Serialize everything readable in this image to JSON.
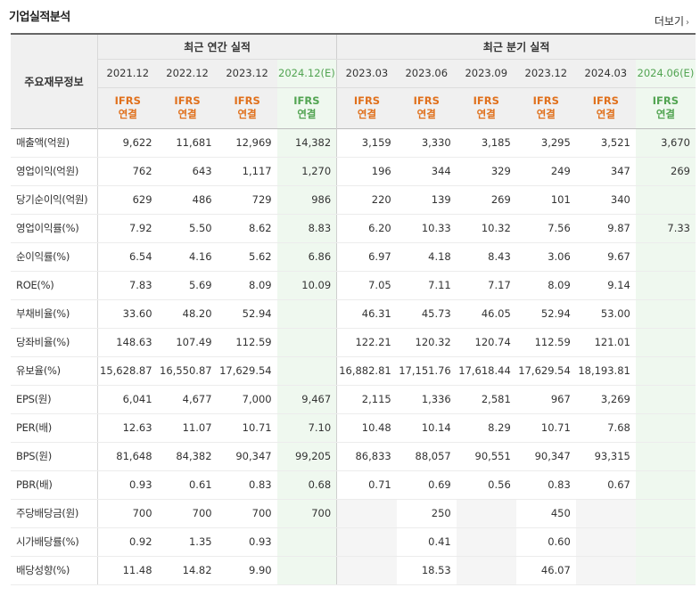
{
  "title": "기업실적분석",
  "more_label": "더보기",
  "header": {
    "main_label": "주요재무정보",
    "annual_group": "최근 연간 실적",
    "quarter_group": "최근 분기 실적",
    "periods": [
      "2021.12",
      "2022.12",
      "2023.12",
      "2024.12(E)",
      "2023.03",
      "2023.06",
      "2023.09",
      "2023.12",
      "2024.03",
      "2024.06(E)"
    ],
    "ifrs_top": "IFRS",
    "ifrs_bottom": "연결"
  },
  "rows": [
    {
      "label": "매출액(억원)",
      "values": [
        "9,622",
        "11,681",
        "12,969",
        "14,382",
        "3,159",
        "3,330",
        "3,185",
        "3,295",
        "3,521",
        "3,670"
      ]
    },
    {
      "label": "영업이익(억원)",
      "values": [
        "762",
        "643",
        "1,117",
        "1,270",
        "196",
        "344",
        "329",
        "249",
        "347",
        "269"
      ]
    },
    {
      "label": "당기순이익(억원)",
      "values": [
        "629",
        "486",
        "729",
        "986",
        "220",
        "139",
        "269",
        "101",
        "340",
        ""
      ]
    },
    {
      "label": "영업이익률(%)",
      "values": [
        "7.92",
        "5.50",
        "8.62",
        "8.83",
        "6.20",
        "10.33",
        "10.32",
        "7.56",
        "9.87",
        "7.33"
      ]
    },
    {
      "label": "순이익률(%)",
      "values": [
        "6.54",
        "4.16",
        "5.62",
        "6.86",
        "6.97",
        "4.18",
        "8.43",
        "3.06",
        "9.67",
        ""
      ]
    },
    {
      "label": "ROE(%)",
      "values": [
        "7.83",
        "5.69",
        "8.09",
        "10.09",
        "7.05",
        "7.11",
        "7.17",
        "8.09",
        "9.14",
        ""
      ]
    },
    {
      "label": "부채비율(%)",
      "values": [
        "33.60",
        "48.20",
        "52.94",
        "",
        "46.31",
        "45.73",
        "46.05",
        "52.94",
        "53.00",
        ""
      ]
    },
    {
      "label": "당좌비율(%)",
      "values": [
        "148.63",
        "107.49",
        "112.59",
        "",
        "122.21",
        "120.32",
        "120.74",
        "112.59",
        "121.01",
        ""
      ]
    },
    {
      "label": "유보율(%)",
      "values": [
        "15,628.87",
        "16,550.87",
        "17,629.54",
        "",
        "16,882.81",
        "17,151.76",
        "17,618.44",
        "17,629.54",
        "18,193.81",
        ""
      ]
    },
    {
      "label": "EPS(원)",
      "values": [
        "6,041",
        "4,677",
        "7,000",
        "9,467",
        "2,115",
        "1,336",
        "2,581",
        "967",
        "3,269",
        ""
      ]
    },
    {
      "label": "PER(배)",
      "values": [
        "12.63",
        "11.07",
        "10.71",
        "7.10",
        "10.48",
        "10.14",
        "8.29",
        "10.71",
        "7.68",
        ""
      ]
    },
    {
      "label": "BPS(원)",
      "values": [
        "81,648",
        "84,382",
        "90,347",
        "99,205",
        "86,833",
        "88,057",
        "90,551",
        "90,347",
        "93,315",
        ""
      ]
    },
    {
      "label": "PBR(배)",
      "values": [
        "0.93",
        "0.61",
        "0.83",
        "0.68",
        "0.71",
        "0.69",
        "0.56",
        "0.83",
        "0.67",
        ""
      ]
    },
    {
      "label": "주당배당금(원)",
      "values": [
        "700",
        "700",
        "700",
        "700",
        "",
        "250",
        "",
        "450",
        "",
        ""
      ]
    },
    {
      "label": "시가배당률(%)",
      "values": [
        "0.92",
        "1.35",
        "0.93",
        "",
        "",
        "0.41",
        "",
        "0.60",
        "",
        ""
      ]
    },
    {
      "label": "배당성향(%)",
      "values": [
        "11.48",
        "14.82",
        "9.90",
        "",
        "",
        "18.53",
        "",
        "46.07",
        "",
        ""
      ]
    }
  ]
}
